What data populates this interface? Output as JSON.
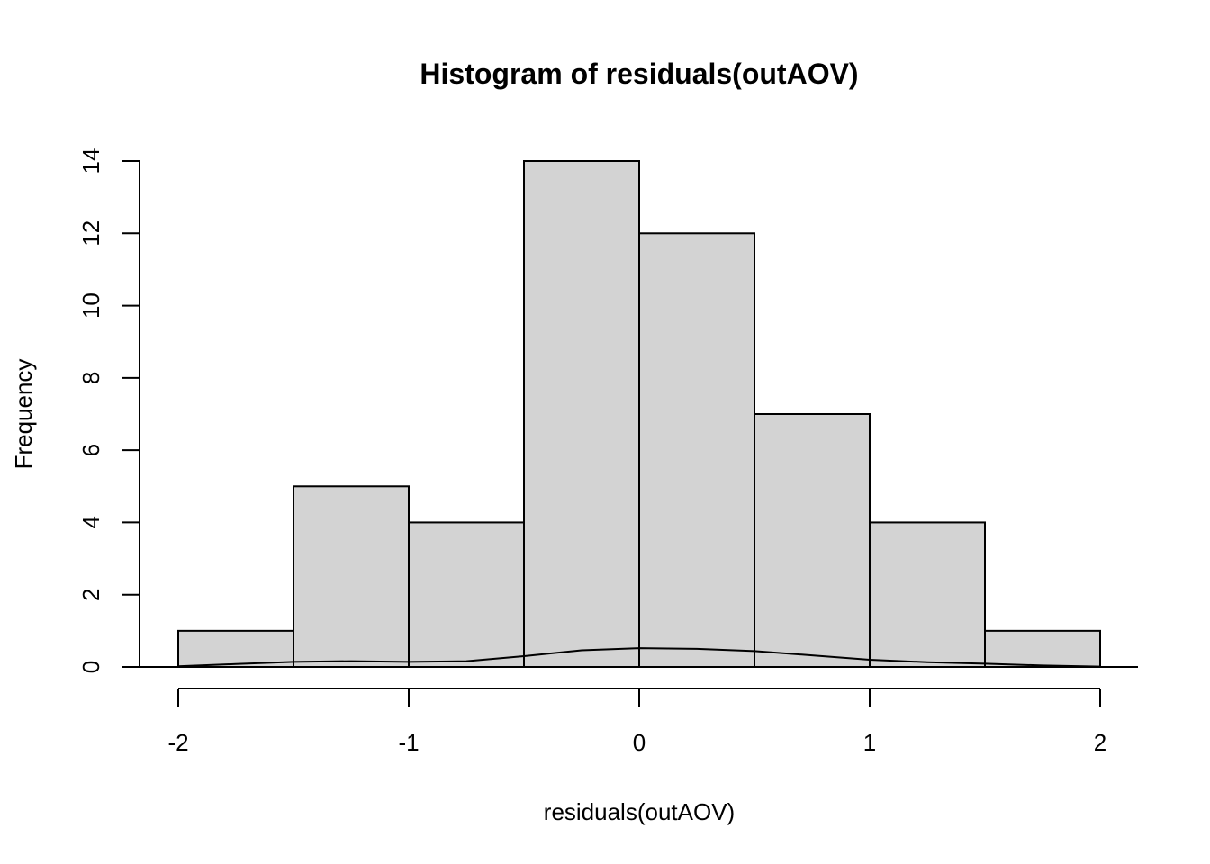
{
  "chart_data": {
    "type": "bar",
    "title": "Histogram of residuals(outAOV)",
    "xlabel": "residuals(outAOV)",
    "ylabel": "Frequency",
    "xlim": [
      -2,
      2
    ],
    "ylim": [
      0,
      14
    ],
    "bin_edges": [
      -2,
      -1.5,
      -1,
      -0.5,
      0,
      0.5,
      1,
      1.5,
      2
    ],
    "values": [
      1,
      5,
      4,
      14,
      12,
      7,
      4,
      1
    ],
    "x_ticks": [
      -2,
      -1,
      0,
      1,
      2
    ],
    "y_ticks": [
      0,
      2,
      4,
      6,
      8,
      10,
      12,
      14
    ],
    "density_curve": {
      "x": [
        -2,
        -1.75,
        -1.5,
        -1.25,
        -1,
        -0.75,
        -0.5,
        -0.25,
        0,
        0.25,
        0.5,
        0.75,
        1,
        1.25,
        1.5,
        1.75,
        2
      ],
      "y": [
        0.02,
        0.08,
        0.14,
        0.16,
        0.14,
        0.16,
        0.3,
        0.46,
        0.52,
        0.5,
        0.44,
        0.32,
        0.2,
        0.13,
        0.09,
        0.04,
        0.01
      ]
    },
    "colors": {
      "bar_fill": "#d3d3d3",
      "bar_stroke": "#000000",
      "line": "#000000"
    },
    "grid": false,
    "legend": "none"
  }
}
